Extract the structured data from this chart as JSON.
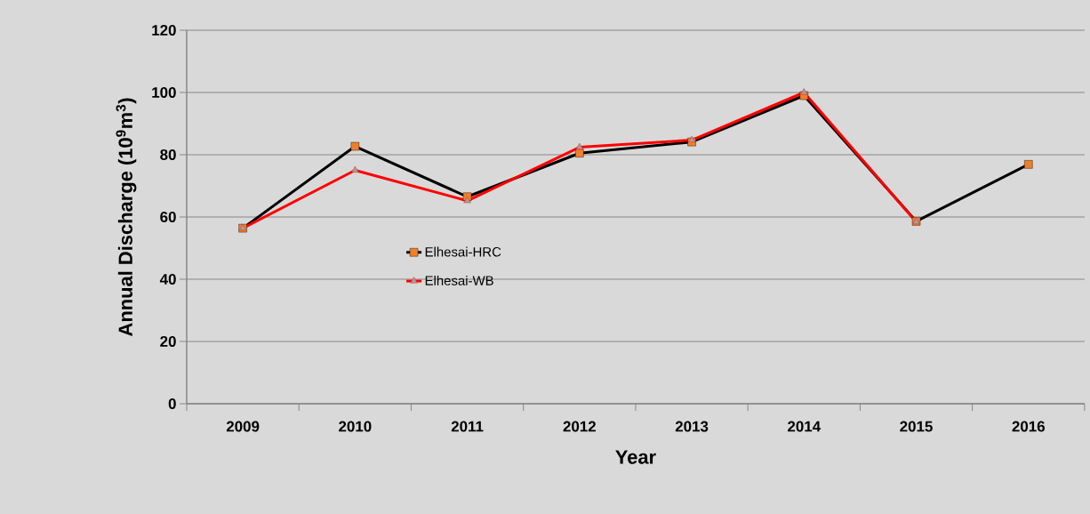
{
  "chart_data": {
    "type": "line",
    "xlabel": "Year",
    "ylabel": "Annual Discharge (10$^{9}$m$^{3}$)",
    "categories": [
      "2009",
      "2010",
      "2011",
      "2012",
      "2013",
      "2014",
      "2015",
      "2016"
    ],
    "series": [
      {
        "name": "Elhesai-HRC",
        "color": "#000000",
        "marker": "square",
        "values": [
          56.4,
          82.7,
          66.5,
          80.5,
          84.1,
          99,
          58.6,
          76.9
        ]
      },
      {
        "name": "Elhesai-WB",
        "color": "#ff0000",
        "marker": "triangle",
        "values": [
          56.4,
          75,
          65.2,
          82.4,
          84.7,
          100,
          58.4,
          null
        ]
      }
    ],
    "ylim": [
      0,
      120
    ],
    "yticks": [
      0,
      20,
      40,
      60,
      80,
      100,
      120
    ],
    "grid": "y",
    "legend": "left",
    "line_style": "solid"
  }
}
